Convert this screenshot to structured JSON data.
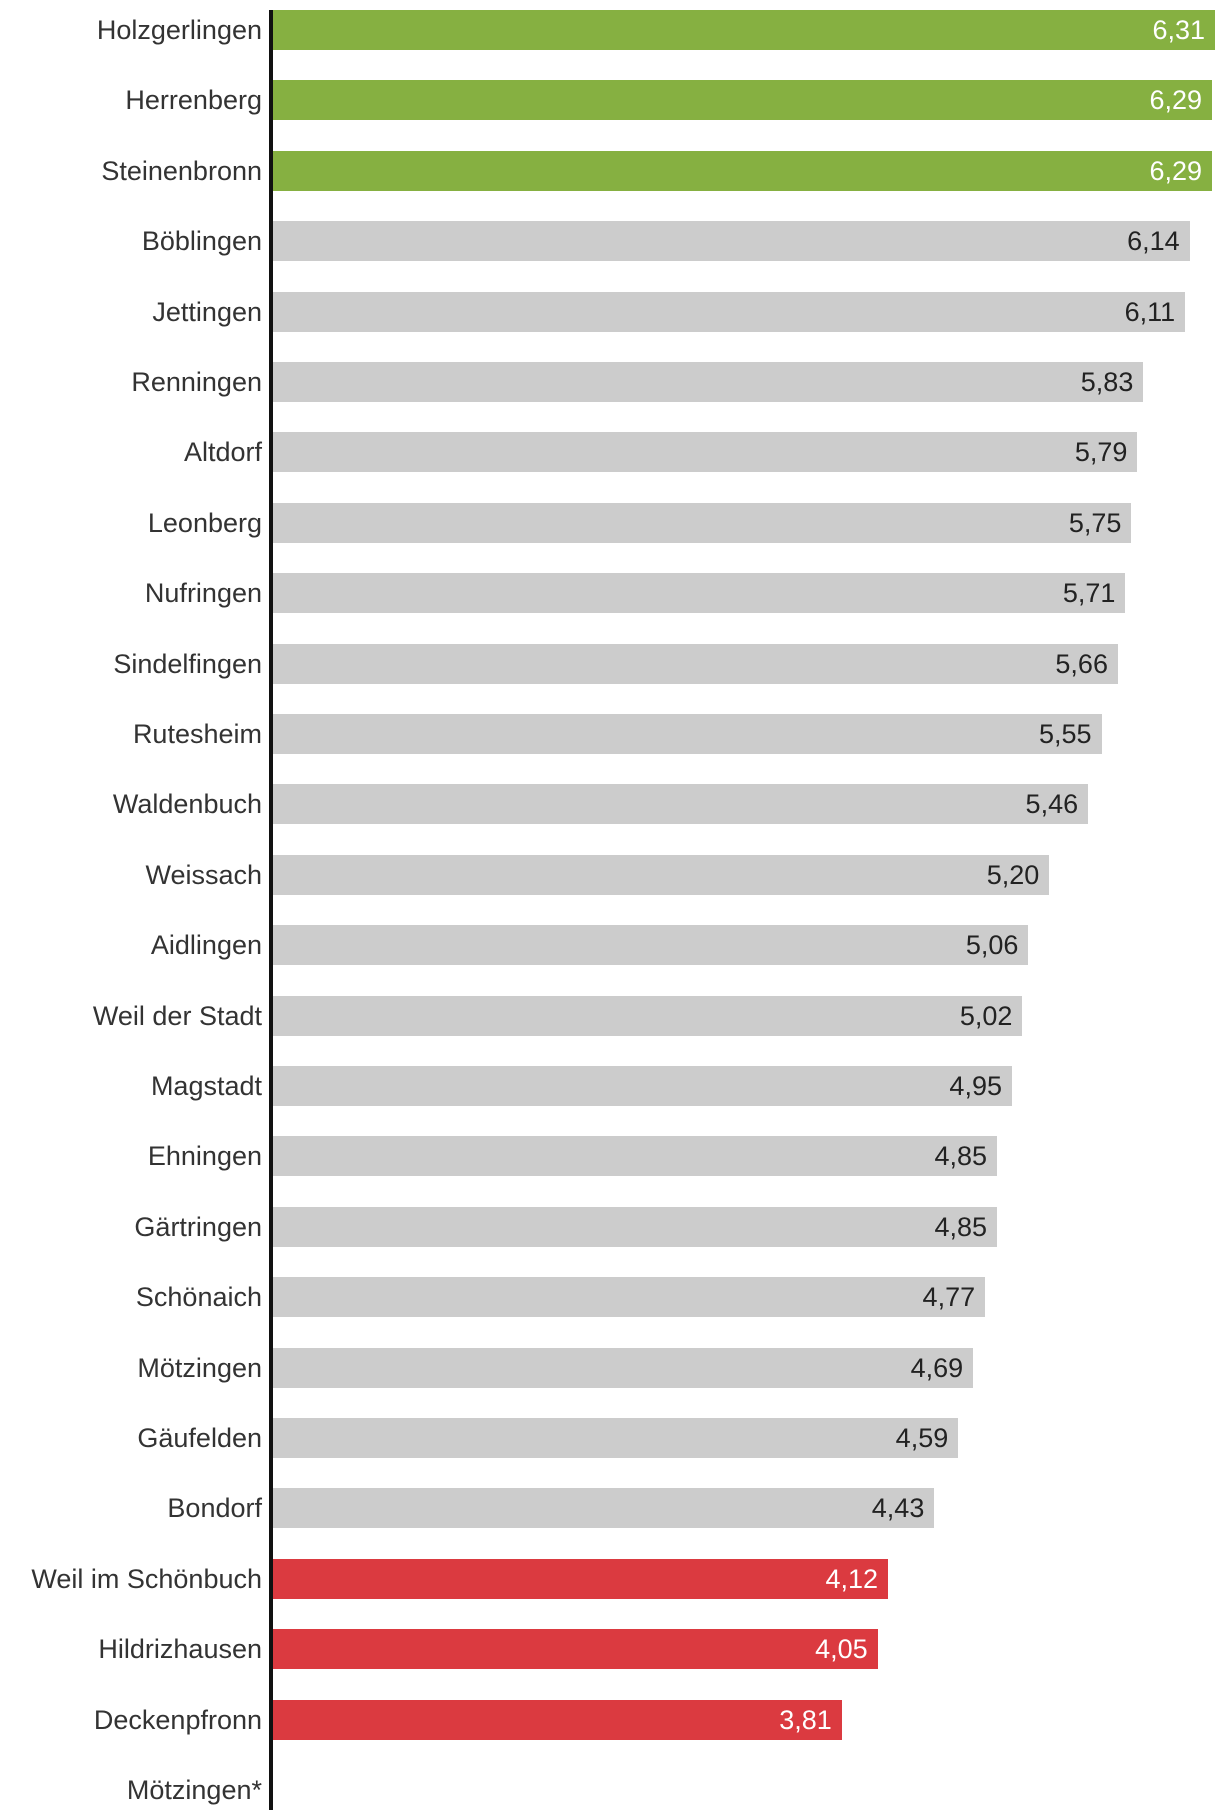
{
  "chart_data": {
    "type": "bar",
    "orientation": "horizontal",
    "title": "",
    "xlabel": "",
    "ylabel": "",
    "xlim": [
      0,
      6.31
    ],
    "grid": false,
    "categories": [
      "Holzgerlingen",
      "Herrenberg",
      "Steinenbronn",
      "Böblingen",
      "Jettingen",
      "Renningen",
      "Altdorf",
      "Leonberg",
      "Nufringen",
      "Sindelfingen",
      "Rutesheim",
      "Waldenbuch",
      "Weissach",
      "Aidlingen",
      "Weil der Stadt",
      "Magstadt",
      "Ehningen",
      "Gärtringen",
      "Schönaich",
      "Mötzingen",
      "Gäufelden",
      "Bondorf",
      "Weil im Schönbuch",
      "Hildrizhausen",
      "Deckenpfronn",
      "Mötzingen*"
    ],
    "values": [
      6.31,
      6.29,
      6.29,
      6.14,
      6.11,
      5.83,
      5.79,
      5.75,
      5.71,
      5.66,
      5.55,
      5.46,
      5.2,
      5.06,
      5.02,
      4.95,
      4.85,
      4.85,
      4.77,
      4.69,
      4.59,
      4.43,
      4.12,
      4.05,
      3.81,
      null
    ],
    "value_labels": [
      "6,31",
      "6,29",
      "6,29",
      "6,14",
      "6,11",
      "5,83",
      "5,79",
      "5,75",
      "5,71",
      "5,66",
      "5,55",
      "5,46",
      "5,20",
      "5,06",
      "5,02",
      "4,95",
      "4,85",
      "4,85",
      "4,77",
      "4,69",
      "4,59",
      "4,43",
      "4,12",
      "4,05",
      "3,81",
      ""
    ],
    "groups": [
      "top",
      "top",
      "top",
      "mid",
      "mid",
      "mid",
      "mid",
      "mid",
      "mid",
      "mid",
      "mid",
      "mid",
      "mid",
      "mid",
      "mid",
      "mid",
      "mid",
      "mid",
      "mid",
      "mid",
      "mid",
      "mid",
      "bottom",
      "bottom",
      "bottom",
      "none"
    ],
    "colors": {
      "top": "#86b041",
      "mid": "#cccccc",
      "bottom": "#db3a40"
    },
    "label_colors": {
      "top": "#ffffff",
      "mid": "#222222",
      "bottom": "#ffffff"
    }
  }
}
